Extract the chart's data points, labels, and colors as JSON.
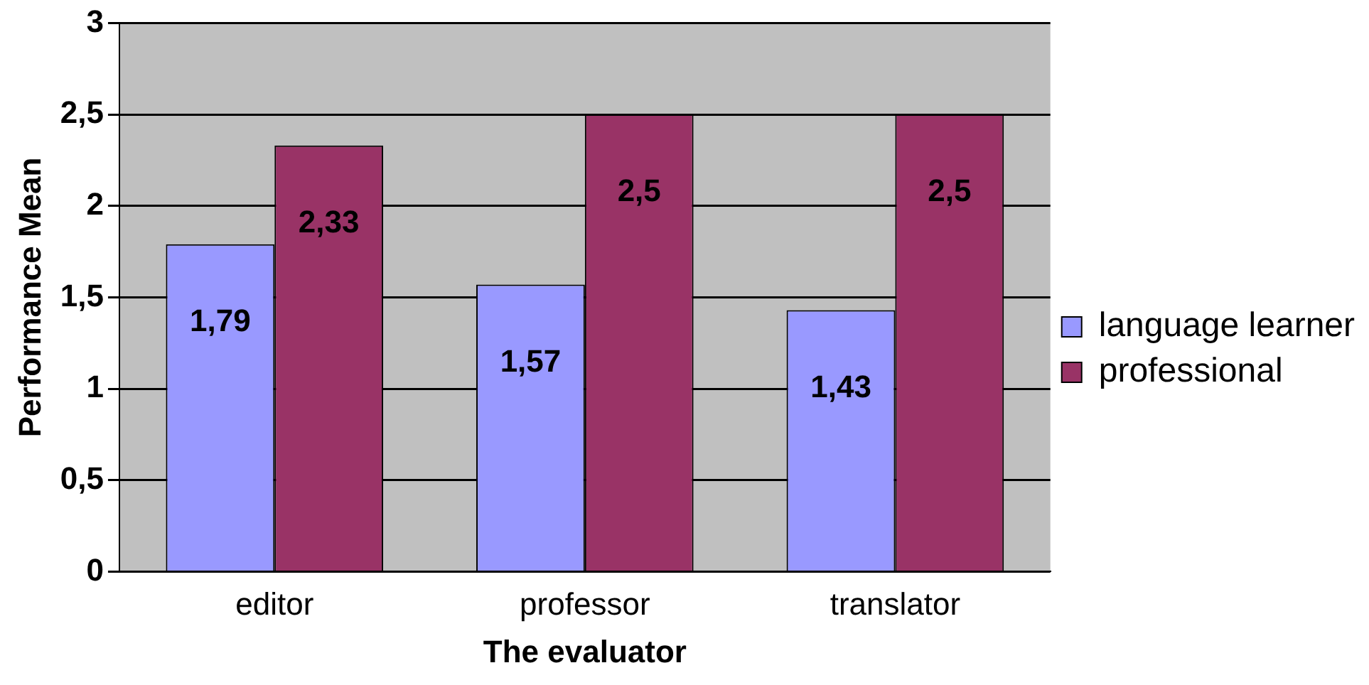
{
  "chart_data": {
    "type": "bar",
    "xlabel": "The evaluator",
    "ylabel": "Performance Mean",
    "categories": [
      "editor",
      "professor",
      "translator"
    ],
    "series": [
      {
        "name": "language learner",
        "color": "#9999ff",
        "values": [
          1.79,
          1.57,
          1.43
        ],
        "value_labels": [
          "1,79",
          "1,57",
          "1,43"
        ]
      },
      {
        "name": "professional",
        "color": "#993366",
        "values": [
          2.33,
          2.5,
          2.5
        ],
        "value_labels": [
          "2,33",
          "2,5",
          "2,5"
        ]
      }
    ],
    "ylim": [
      0,
      3
    ],
    "yticks": [
      0,
      {
        "value": 0.5,
        "label": "0,5"
      },
      1,
      {
        "value": 1.5,
        "label": "1,5"
      },
      2,
      {
        "value": 2.5,
        "label": "2,5"
      },
      3
    ],
    "grid": "y",
    "legend": "right"
  }
}
